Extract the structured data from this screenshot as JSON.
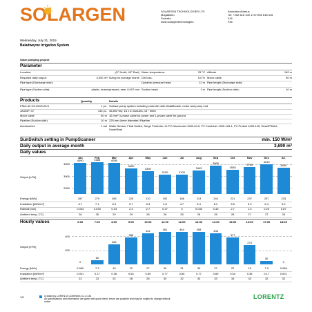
{
  "header": {
    "brand": "SOLARGEN",
    "company": "SOLARGEN TECHNOLOGIES LTD",
    "city": "Mogadishu",
    "country": "Somalia",
    "web": "www.solargentechnologies.",
    "contact_name": "Abubakar Aidarus",
    "tel": "Tel: +252 616 100 174/+252 618 515",
    "tel2": "416",
    "fax": "Fax:",
    "date": "Wednesday, July 31, 2019",
    "project_title": "Baladweyne Irrigation System",
    "project_type": "Solar pumping project"
  },
  "parameters": {
    "title": "Parameter",
    "rows": [
      [
        "Location:",
        ", (5° North; 45° East)",
        "Water temperature:",
        "25 °C",
        "Altitude",
        "182 m"
      ],
      [
        "Required daily output:",
        "3,000 m³; Sizing for average month",
        "Dirt loss:",
        "5.0 %",
        "Motor cable:",
        "50 m"
      ],
      [
        "Pipe type (Discharge side):",
        "",
        "Dynamic pressure head:",
        "12 m",
        "Pipe length (Discharge side):",
        ""
      ],
      [
        "Pipe type (Suction side):",
        "plastic, drawn/pressed, new: 0.007 mm",
        "Suction head:",
        "1 m",
        "Pipe length (Suction side):",
        "10 m"
      ]
    ]
  },
  "products": {
    "title": "Products",
    "qty_header": "Quantity",
    "details_header": "Details",
    "rows": [
      [
        "PSk2-40 C5-G200-24/4",
        "1 pc.",
        "Surface pump system including controller with DataModule, motor and pump end"
      ],
      [
        "JA325P-72",
        "144 pc.",
        "46,800 Wp; 18 x 8 modules; 15 ° tilted"
      ],
      [
        "Motor cable",
        "50 m",
        "16 mm² 3-phase cable for power and 1-phase cable for ground"
      ],
      [
        "Pipeline (Suction side)",
        "10 m",
        "225 mm (inner diameter) Pipeline"
      ],
      [
        "Accessories",
        "1 set",
        "Water Sensor, Float Switch, Surge Protector, 2x PV Disconnect 1000-40-5, PV Combiner 1000-125-1, PV Protect 1000-125, SmartPSUk2, SmartStart"
      ]
    ]
  },
  "sunswitch": {
    "label": "SunSwitch setting in PumpScanner",
    "value": "min. 150 W/m²",
    "daily_label": "Daily output in average month",
    "daily_value": "3,690 m³"
  },
  "daily": {
    "title": "Daily values",
    "ylabel": "Output [m³/d]",
    "energy_label": "Energy [kWh]",
    "irradiation_label": "Irradiation [kWh/m²]",
    "rainfall_label": "Rainfall [mm]",
    "ambient_label": "Ambient temp. [°C]",
    "energy": [
      "287",
      "279",
      "265",
      "225",
      "210",
      "192",
      "188",
      "213",
      "244",
      "221",
      "237",
      "257",
      "233"
    ],
    "irradiation": [
      "6.7",
      "7.1",
      "6.9",
      "5.7",
      "5.3",
      "4.8",
      "4.7",
      "5.4",
      "6.2",
      "5.5",
      "5.9",
      "6.4",
      "5.9"
    ],
    "rainfall": [
      "0.033",
      "0.033",
      "0.33",
      "2.4",
      "2.7",
      "0.37",
      "0",
      "0.033",
      "0.40",
      "2.7",
      "1.3",
      "0.20",
      "0.87"
    ],
    "ambient": [
      "28",
      "28",
      "29",
      "29",
      "28",
      "28",
      "28",
      "28",
      "28",
      "28",
      "27",
      "27",
      "28"
    ]
  },
  "hourly": {
    "title": "Hourly values",
    "ylabel": "Output [m³/h]",
    "energy_label": "Energy [kWh]",
    "irradiation_label": "Irradiation [kWh/m²]",
    "ambient_label": "Ambient temp. [°C]",
    "energy": [
      "0.060",
      "7.3",
      "15",
      "22",
      "27",
      "30",
      "31",
      "30",
      "27",
      "22",
      "15",
      "7.0",
      "0.058"
    ],
    "irradiation": [
      "0.001",
      "0.17",
      "0.36",
      "0.54",
      "0.69",
      "0.77",
      "0.80",
      "0.77",
      "0.69",
      "0.54",
      "0.36",
      "0.17",
      "0.001"
    ],
    "ambient": [
      "23",
      "23",
      "24",
      "26",
      "28",
      "30",
      "32",
      "33",
      "33",
      "33",
      "33",
      "32",
      "32"
    ]
  },
  "chart_data": [
    {
      "type": "bar",
      "title": "Daily values",
      "ylabel": "Output [m³/d]",
      "categories": [
        "Jan",
        "Feb",
        "Mar",
        "Apr",
        "May",
        "Jun",
        "Jul",
        "Aug",
        "Sep",
        "Oct",
        "Nov",
        "Dec",
        "Av."
      ],
      "values": [
        4090,
        4185,
        4095,
        3620,
        3390,
        3150,
        3100,
        3445,
        3865,
        3535,
        3765,
        4010,
        3690
      ],
      "yticks": [
        2000,
        3000,
        4000
      ],
      "ylim": [
        1500,
        4400
      ]
    },
    {
      "type": "bar",
      "title": "Hourly values",
      "ylabel": "Output [m³/h]",
      "categories": [
        "6:00",
        "7:00",
        "8:00",
        "9:00",
        "10:00",
        "11:00",
        "12:00",
        "13:00",
        "14:00",
        "15:00",
        "16:00",
        "17:00",
        "18:00"
      ],
      "values": [
        0,
        60,
        284,
        385,
        442,
        461,
        464,
        458,
        436,
        377,
        274,
        50,
        0
      ],
      "yticks": [
        200,
        400
      ],
      "ylim": [
        0,
        470
      ]
    }
  ],
  "footer": {
    "page": "1/5",
    "line1": "Created by LORENTZ COMPASS 3.1.0.134",
    "line2": "All specifications and information are given with good intent, errors are possible and may be subject to change without",
    "line3": "notice",
    "brand": "LORENTZ"
  }
}
